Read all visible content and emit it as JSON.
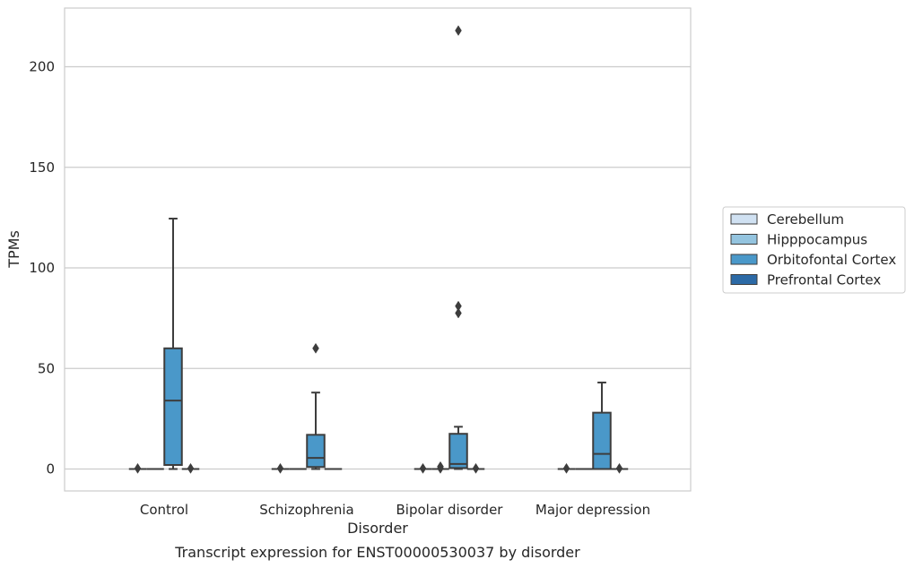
{
  "caption": "Transcript expression for ENST00000530037 by disorder",
  "chart_data": {
    "type": "box",
    "xlabel": "Disorder",
    "ylabel": "TPMs",
    "categories": [
      "Control",
      "Schizophrenia",
      "Bipolar disorder",
      "Major depression"
    ],
    "ylim": [
      -11,
      229
    ],
    "yticks": [
      0,
      50,
      100,
      150,
      200
    ],
    "grid": "horizontal",
    "legend_position": "right",
    "series": [
      {
        "name": "Cerebellum",
        "color": "#d0e1f2",
        "boxes": [
          {
            "q1": 0,
            "median": 0,
            "q3": 0,
            "whisker_low": 0,
            "whisker_high": 0,
            "outliers": [
              0.3
            ]
          },
          {
            "q1": 0,
            "median": 0,
            "q3": 0,
            "whisker_low": 0,
            "whisker_high": 0,
            "outliers": [
              0.3
            ]
          },
          {
            "q1": 0,
            "median": 0,
            "q3": 0,
            "whisker_low": 0,
            "whisker_high": 0,
            "outliers": [
              0.3
            ]
          },
          {
            "q1": 0,
            "median": 0,
            "q3": 0,
            "whisker_low": 0,
            "whisker_high": 0,
            "outliers": [
              0.3
            ]
          }
        ]
      },
      {
        "name": "Hipppocampus",
        "color": "#94c4df",
        "boxes": [
          {
            "q1": 0,
            "median": 0,
            "q3": 0,
            "whisker_low": 0,
            "whisker_high": 0,
            "outliers": []
          },
          {
            "q1": 0,
            "median": 0,
            "q3": 0,
            "whisker_low": 0,
            "whisker_high": 0,
            "outliers": []
          },
          {
            "q1": 0,
            "median": 0,
            "q3": 0,
            "whisker_low": 0,
            "whisker_high": 0,
            "outliers": [
              0.3,
              1.2
            ]
          },
          {
            "q1": 0,
            "median": 0,
            "q3": 0,
            "whisker_low": 0,
            "whisker_high": 0,
            "outliers": []
          }
        ]
      },
      {
        "name": "Orbitofontal Cortex",
        "color": "#4a98c9",
        "boxes": [
          {
            "q1": 2,
            "median": 34,
            "q3": 60,
            "whisker_low": 0,
            "whisker_high": 124.5,
            "outliers": []
          },
          {
            "q1": 1,
            "median": 5.5,
            "q3": 17,
            "whisker_low": 0,
            "whisker_high": 38,
            "outliers": [
              60
            ]
          },
          {
            "q1": 0.5,
            "median": 2.5,
            "q3": 17.5,
            "whisker_low": 0,
            "whisker_high": 21,
            "outliers": [
              77.5,
              81,
              218
            ]
          },
          {
            "q1": 0,
            "median": 7.5,
            "q3": 28,
            "whisker_low": 0,
            "whisker_high": 43,
            "outliers": []
          }
        ]
      },
      {
        "name": "Prefrontal Cortex",
        "color": "#2c6aa6",
        "boxes": [
          {
            "q1": 0,
            "median": 0,
            "q3": 0,
            "whisker_low": 0,
            "whisker_high": 0,
            "outliers": [
              0.3
            ]
          },
          {
            "q1": 0,
            "median": 0,
            "q3": 0,
            "whisker_low": 0,
            "whisker_high": 0,
            "outliers": []
          },
          {
            "q1": 0,
            "median": 0,
            "q3": 0,
            "whisker_low": 0,
            "whisker_high": 0,
            "outliers": [
              0.3
            ]
          },
          {
            "q1": 0,
            "median": 0,
            "q3": 0,
            "whisker_low": 0,
            "whisker_high": 0,
            "outliers": [
              0.3
            ]
          }
        ]
      }
    ]
  }
}
